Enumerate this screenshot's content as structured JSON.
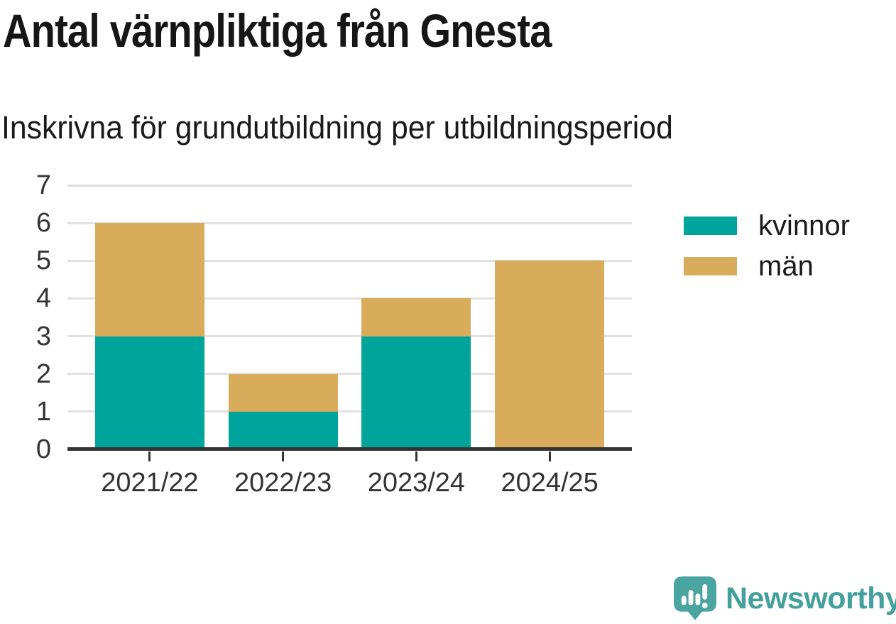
{
  "header": {
    "title": "Antal värnpliktiga från Gnesta",
    "subtitle": "Inskrivna för grundutbildning per utbildningsperiod"
  },
  "chart_data": {
    "type": "bar",
    "stacked": true,
    "title": "Antal värnpliktiga från Gnesta",
    "subtitle": "Inskrivna för grundutbildning per utbildningsperiod",
    "categories": [
      "2021/22",
      "2022/23",
      "2023/24",
      "2024/25"
    ],
    "series": [
      {
        "name": "kvinnor",
        "color": "#00a49b",
        "values": [
          3,
          1,
          3,
          0
        ]
      },
      {
        "name": "män",
        "color": "#d9ac5c",
        "values": [
          3,
          1,
          1,
          5
        ]
      }
    ],
    "totals": [
      6,
      2,
      4,
      5
    ],
    "xlabel": "",
    "ylabel": "",
    "ylim": [
      0,
      7
    ],
    "yticks": [
      0,
      1,
      2,
      3,
      4,
      5,
      6,
      7
    ],
    "grid": true,
    "grid_color": "#e1e1e1",
    "axis_color": "#333333",
    "tick_label_color": "#333333",
    "legend_position": "right"
  },
  "footer": {
    "brand": "Newsworthy",
    "brand_color": "#44a09c",
    "logo_bubble_color": "#4aa5a0"
  }
}
